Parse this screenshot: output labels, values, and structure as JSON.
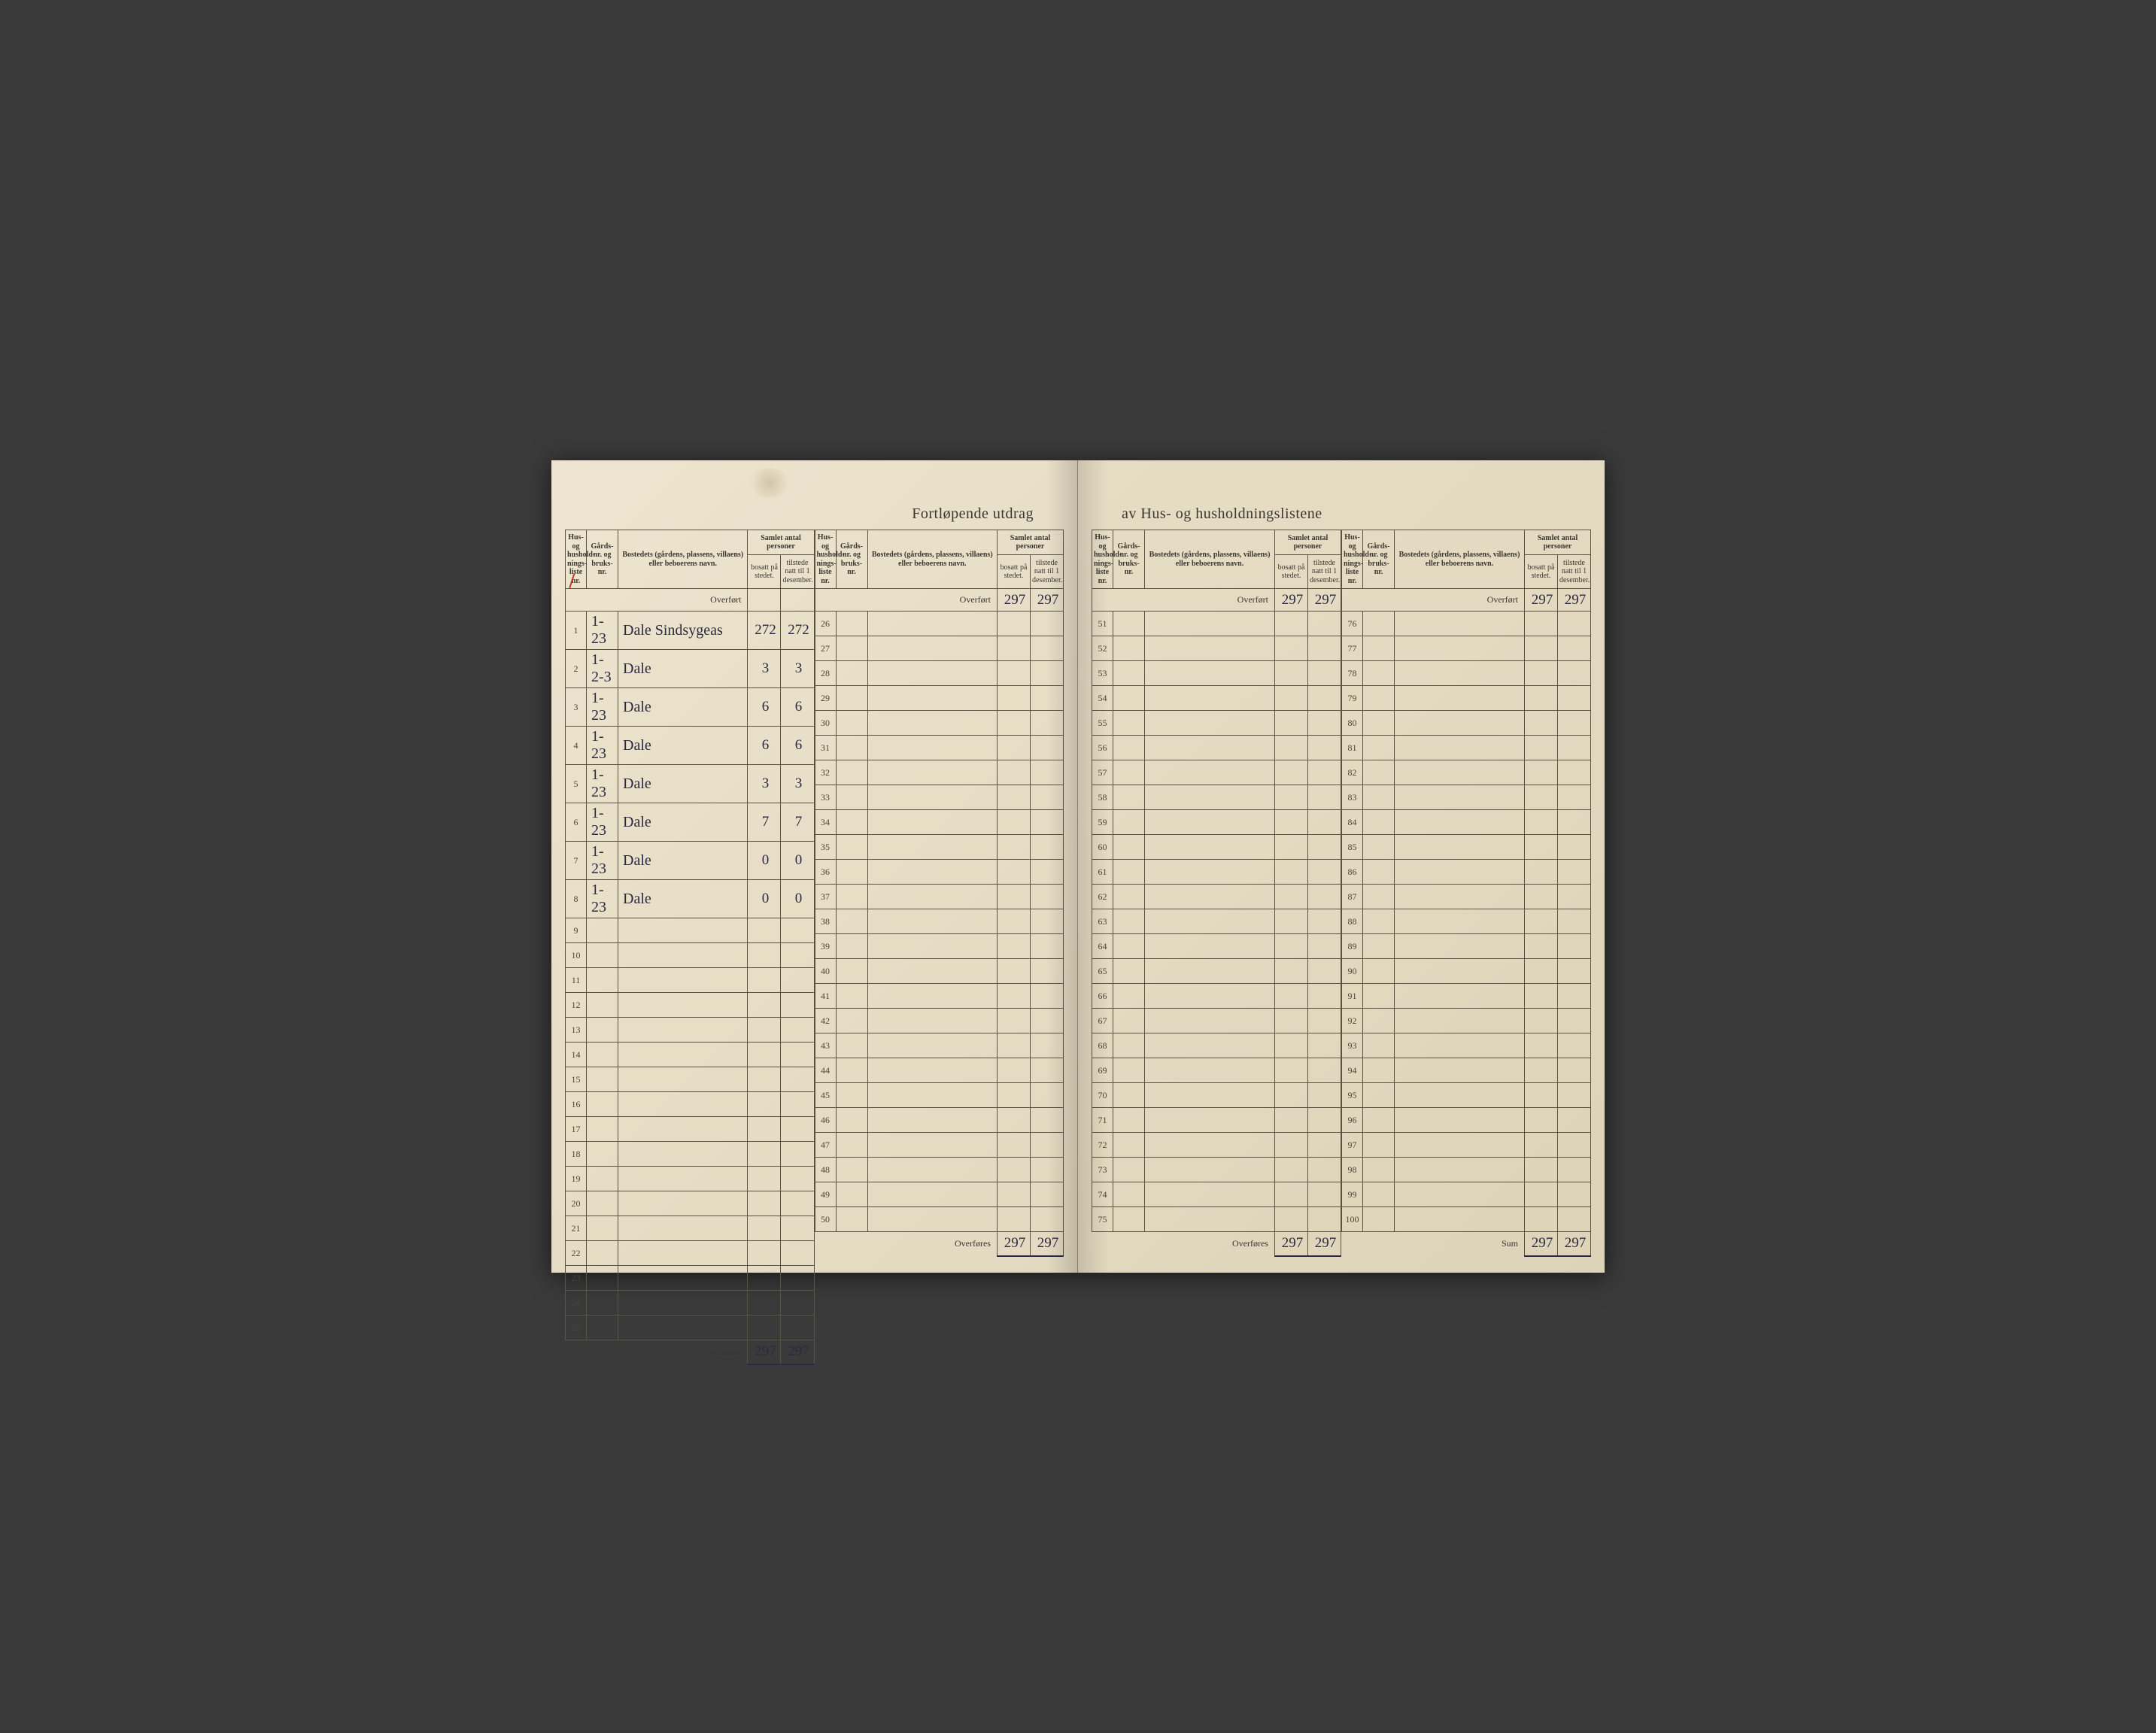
{
  "title_left": "Fortløpende utdrag",
  "title_right": "av Hus- og husholdningslistene",
  "headers": {
    "liste": "Hus- og hushold-nings-liste nr.",
    "gard": "Gårds-nr. og bruks-nr.",
    "bosted": "Bostedets (gårdens, plassens, villaens) eller beboerens navn.",
    "samlet": "Samlet antal personer",
    "bosatt": "bosatt på stedet.",
    "tilstede": "tilstede natt til 1 desember."
  },
  "carry_label_top": "Overført",
  "carry_label_bottom": "Overføres",
  "sum_label": "Sum",
  "carry_top": {
    "bosatt": "297",
    "tilstede": "297"
  },
  "carry_bottom": {
    "bosatt": "297",
    "tilstede": "297"
  },
  "sections": [
    {
      "start": 1,
      "rows": [
        {
          "n": 1,
          "gard": "1-23",
          "bosted": "Dale Sindsygeas",
          "bosatt": "272",
          "tilstede": "272"
        },
        {
          "n": 2,
          "gard": "1-2-3",
          "bosted": "Dale",
          "bosatt": "3",
          "tilstede": "3"
        },
        {
          "n": 3,
          "gard": "1-23",
          "bosted": "Dale",
          "bosatt": "6",
          "tilstede": "6"
        },
        {
          "n": 4,
          "gard": "1-23",
          "bosted": "Dale",
          "bosatt": "6",
          "tilstede": "6"
        },
        {
          "n": 5,
          "gard": "1-23",
          "bosted": "Dale",
          "bosatt": "3",
          "tilstede": "3"
        },
        {
          "n": 6,
          "gard": "1-23",
          "bosted": "Dale",
          "bosatt": "7",
          "tilstede": "7"
        },
        {
          "n": 7,
          "gard": "1-23",
          "bosted": "Dale",
          "bosatt": "0",
          "tilstede": "0"
        },
        {
          "n": 8,
          "gard": "1-23",
          "bosted": "Dale",
          "bosatt": "0",
          "tilstede": "0"
        },
        {
          "n": 9
        },
        {
          "n": 10
        },
        {
          "n": 11
        },
        {
          "n": 12
        },
        {
          "n": 13
        },
        {
          "n": 14
        },
        {
          "n": 15
        },
        {
          "n": 16
        },
        {
          "n": 17
        },
        {
          "n": 18
        },
        {
          "n": 19
        },
        {
          "n": 20
        },
        {
          "n": 21
        },
        {
          "n": 22
        },
        {
          "n": 23
        },
        {
          "n": 24
        },
        {
          "n": 25
        }
      ]
    },
    {
      "start": 26,
      "rows": [
        {
          "n": 26
        },
        {
          "n": 27
        },
        {
          "n": 28
        },
        {
          "n": 29
        },
        {
          "n": 30
        },
        {
          "n": 31
        },
        {
          "n": 32
        },
        {
          "n": 33
        },
        {
          "n": 34
        },
        {
          "n": 35
        },
        {
          "n": 36
        },
        {
          "n": 37
        },
        {
          "n": 38
        },
        {
          "n": 39
        },
        {
          "n": 40
        },
        {
          "n": 41
        },
        {
          "n": 42
        },
        {
          "n": 43
        },
        {
          "n": 44
        },
        {
          "n": 45
        },
        {
          "n": 46
        },
        {
          "n": 47
        },
        {
          "n": 48
        },
        {
          "n": 49
        },
        {
          "n": 50
        }
      ]
    },
    {
      "start": 51,
      "rows": [
        {
          "n": 51
        },
        {
          "n": 52
        },
        {
          "n": 53
        },
        {
          "n": 54
        },
        {
          "n": 55
        },
        {
          "n": 56
        },
        {
          "n": 57
        },
        {
          "n": 58
        },
        {
          "n": 59
        },
        {
          "n": 60
        },
        {
          "n": 61
        },
        {
          "n": 62
        },
        {
          "n": 63
        },
        {
          "n": 64
        },
        {
          "n": 65
        },
        {
          "n": 66
        },
        {
          "n": 67
        },
        {
          "n": 68
        },
        {
          "n": 69
        },
        {
          "n": 70
        },
        {
          "n": 71
        },
        {
          "n": 72
        },
        {
          "n": 73
        },
        {
          "n": 74
        },
        {
          "n": 75
        }
      ]
    },
    {
      "start": 76,
      "rows": [
        {
          "n": 76
        },
        {
          "n": 77
        },
        {
          "n": 78
        },
        {
          "n": 79
        },
        {
          "n": 80
        },
        {
          "n": 81
        },
        {
          "n": 82
        },
        {
          "n": 83
        },
        {
          "n": 84
        },
        {
          "n": 85
        },
        {
          "n": 86
        },
        {
          "n": 87
        },
        {
          "n": 88
        },
        {
          "n": 89
        },
        {
          "n": 90
        },
        {
          "n": 91
        },
        {
          "n": 92
        },
        {
          "n": 93
        },
        {
          "n": 94
        },
        {
          "n": 95
        },
        {
          "n": 96
        },
        {
          "n": 97
        },
        {
          "n": 98
        },
        {
          "n": 99
        },
        {
          "n": 100
        }
      ]
    }
  ],
  "colors": {
    "paper": "#e8dfc8",
    "ink_print": "#3a3730",
    "ink_hand": "#2a2a42",
    "rule": "#5a5344",
    "red": "#c0392b"
  }
}
